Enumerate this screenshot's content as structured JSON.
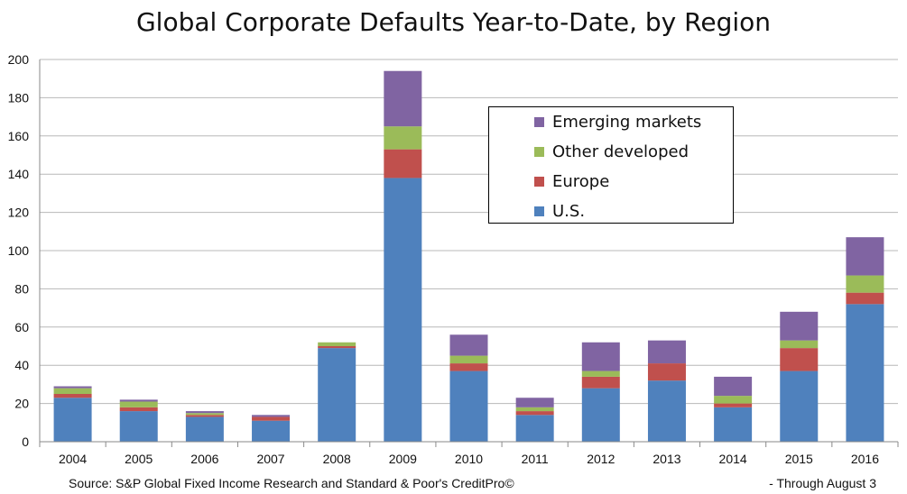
{
  "chart_data": {
    "type": "bar",
    "stacked": true,
    "title": "Global Corporate Defaults Year-to-Date, by Region",
    "xlabel": "",
    "ylabel": "",
    "ylim": [
      0,
      200
    ],
    "yticks": [
      0,
      20,
      40,
      60,
      80,
      100,
      120,
      140,
      160,
      180,
      200
    ],
    "grid": true,
    "legend_position": "top-right",
    "categories": [
      "2004",
      "2005",
      "2006",
      "2007",
      "2008",
      "2009",
      "2010",
      "2011",
      "2012",
      "2013",
      "2014",
      "2015",
      "2016"
    ],
    "series": [
      {
        "name": "U.S.",
        "color": "#4F81BD",
        "values": [
          23,
          16,
          13,
          11,
          49,
          138,
          37,
          14,
          28,
          32,
          18,
          37,
          72
        ]
      },
      {
        "name": "Europe",
        "color": "#C0504D",
        "values": [
          2,
          2,
          1,
          2,
          1,
          15,
          4,
          2,
          6,
          9,
          2,
          12,
          6
        ]
      },
      {
        "name": "Other developed",
        "color": "#9BBB59",
        "values": [
          3,
          3,
          1,
          0,
          2,
          12,
          4,
          2,
          3,
          0,
          4,
          4,
          9
        ]
      },
      {
        "name": "Emerging markets",
        "color": "#8064A2",
        "values": [
          1,
          1,
          1,
          1,
          0,
          29,
          11,
          5,
          15,
          12,
          10,
          15,
          20
        ]
      }
    ],
    "legend_order": [
      "Emerging markets",
      "Other developed",
      "Europe",
      "U.S."
    ]
  },
  "notes": {
    "source": "Source: S&P Global Fixed Income Research and Standard & Poor's CreditPro©",
    "through": "- Through August 3"
  }
}
